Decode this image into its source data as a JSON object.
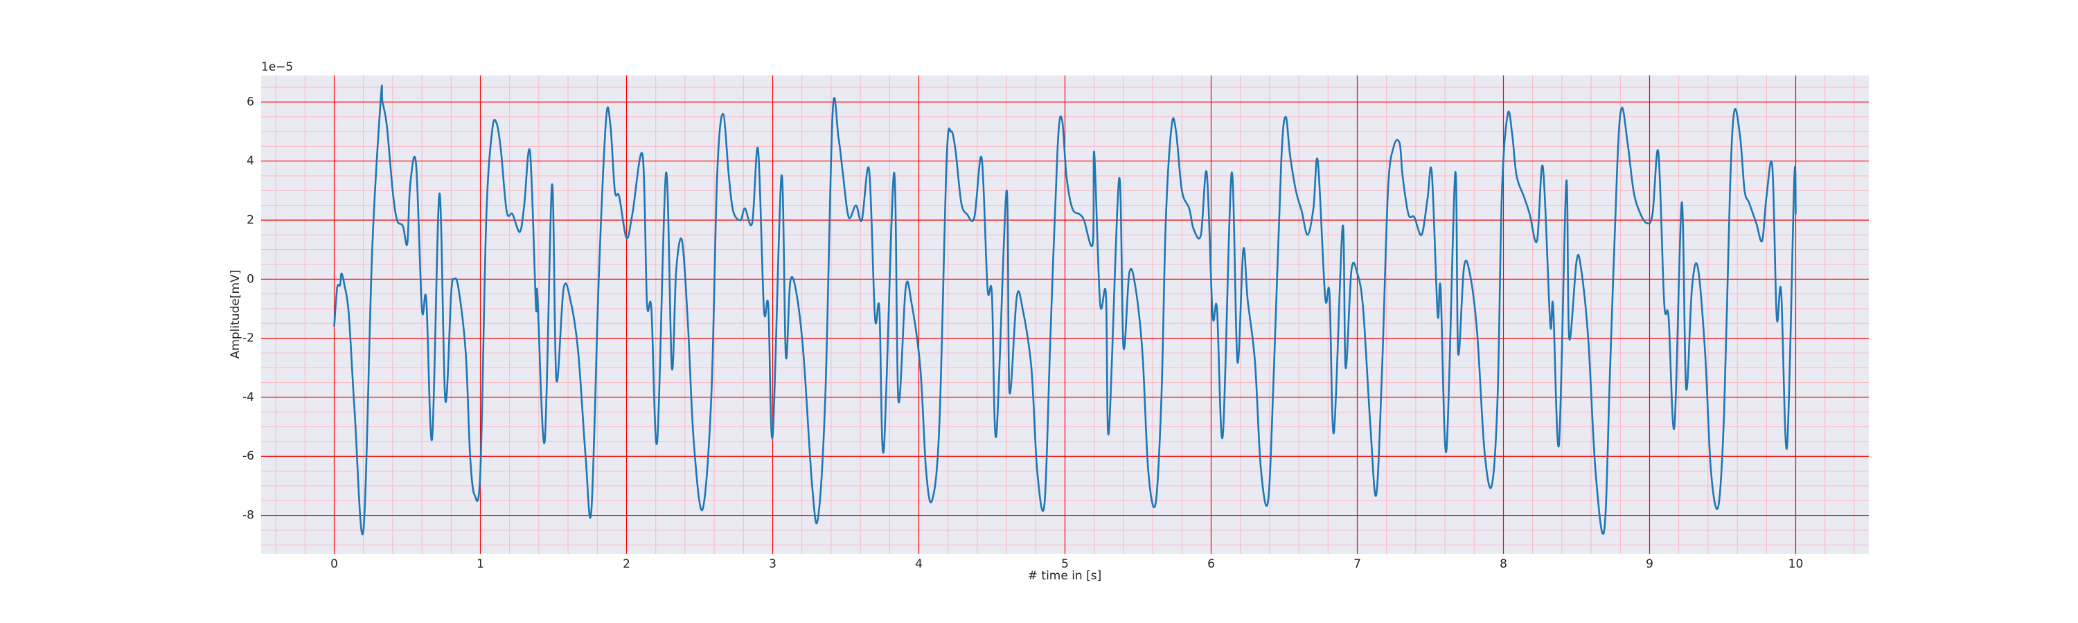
{
  "chart_data": {
    "type": "line",
    "offset_label": "1e−5",
    "xlabel": "# time in [s]",
    "ylabel": "Amplitude[mV]",
    "xlim": [
      -0.5,
      10.5
    ],
    "ylim": [
      -9.3,
      6.9
    ],
    "xticks": [
      0,
      1,
      2,
      3,
      4,
      5,
      6,
      7,
      8,
      9,
      10
    ],
    "yticks": [
      -8,
      -6,
      -4,
      -2,
      0,
      2,
      4,
      6
    ],
    "xminorticks": [
      -0.4,
      -0.2,
      0.2,
      0.4,
      0.6,
      0.8,
      1.2,
      1.4,
      1.6,
      1.8,
      2.2,
      2.4,
      2.6,
      2.8,
      3.2,
      3.4,
      3.6,
      3.8,
      4.2,
      4.4,
      4.6,
      4.8,
      5.2,
      5.4,
      5.6,
      5.8,
      6.2,
      6.4,
      6.6,
      6.8,
      7.2,
      7.4,
      7.6,
      7.8,
      8.2,
      8.4,
      8.6,
      8.8,
      9.2,
      9.4,
      9.6,
      9.8,
      10.2,
      10.4
    ],
    "yminorticks": [
      -9,
      -8.5,
      -7.5,
      -7,
      -6.5,
      -5.5,
      -5,
      -4.5,
      -3.5,
      -3,
      -2.5,
      -1.5,
      -1,
      -0.5,
      0.5,
      1,
      1.5,
      2.5,
      3,
      3.5,
      4.5,
      5,
      5.5,
      6.5
    ],
    "grid": true,
    "grid_color": "#ff0000",
    "minor_grid_color": "#ffb6c1",
    "background": "#eaeaf2",
    "color": "#1f77b4",
    "x": [
      0,
      0.02,
      0.04,
      0.05,
      0.07,
      0.1,
      0.14,
      0.2,
      0.26,
      0.32,
      0.33,
      0.36,
      0.4,
      0.43,
      0.47,
      0.5,
      0.52,
      0.56,
      0.6,
      0.63,
      0.67,
      0.72,
      0.76,
      0.8,
      0.82,
      0.85,
      0.9,
      0.93,
      0.96,
      1.0,
      1.04,
      1.08,
      1.11,
      1.14,
      1.18,
      1.22,
      1.27,
      1.3,
      1.34,
      1.38,
      1.39,
      1.44,
      1.49,
      1.52,
      1.57,
      1.62,
      1.67,
      1.72,
      1.76,
      1.81,
      1.86,
      1.89,
      1.92,
      1.95,
      2.0,
      2.04,
      2.11,
      2.14,
      2.17,
      2.21,
      2.27,
      2.31,
      2.34,
      2.38,
      2.42,
      2.46,
      2.52,
      2.58,
      2.62,
      2.66,
      2.7,
      2.73,
      2.78,
      2.81,
      2.86,
      2.9,
      2.94,
      2.97,
      3.0,
      3.06,
      3.09,
      3.12,
      3.16,
      3.21,
      3.27,
      3.31,
      3.36,
      3.41,
      3.45,
      3.48,
      3.52,
      3.57,
      3.61,
      3.66,
      3.7,
      3.73,
      3.76,
      3.83,
      3.86,
      3.91,
      3.95,
      4.01,
      4.05,
      4.09,
      4.14,
      4.19,
      4.22,
      4.25,
      4.29,
      4.33,
      4.38,
      4.43,
      4.47,
      4.5,
      4.53,
      4.6,
      4.62,
      4.67,
      4.71,
      4.77,
      4.81,
      4.86,
      4.9,
      4.95,
      4.98,
      5.01,
      5.05,
      5.1,
      5.13,
      5.19,
      5.2,
      5.24,
      5.28,
      5.3,
      5.37,
      5.4,
      5.44,
      5.48,
      5.53,
      5.57,
      5.62,
      5.66,
      5.69,
      5.73,
      5.76,
      5.8,
      5.85,
      5.88,
      5.93,
      5.97,
      6.01,
      6.04,
      6.08,
      6.14,
      6.18,
      6.22,
      6.25,
      6.3,
      6.34,
      6.39,
      6.43,
      6.48,
      6.51,
      6.54,
      6.58,
      6.62,
      6.66,
      6.7,
      6.73,
      6.78,
      6.81,
      6.84,
      6.9,
      6.92,
      6.96,
      7.0,
      7.04,
      7.09,
      7.13,
      7.17,
      7.21,
      7.25,
      7.29,
      7.31,
      7.35,
      7.39,
      7.44,
      7.48,
      7.51,
      7.55,
      7.57,
      7.61,
      7.67,
      7.69,
      7.73,
      7.77,
      7.82,
      7.87,
      7.92,
      7.96,
      7.99,
      8.03,
      8.06,
      8.09,
      8.14,
      8.18,
      8.23,
      8.27,
      8.32,
      8.34,
      8.38,
      8.43,
      8.45,
      8.5,
      8.53,
      8.58,
      8.63,
      8.69,
      8.73,
      8.78,
      8.81,
      8.85,
      8.89,
      8.93,
      8.98,
      9.02,
      9.06,
      9.1,
      9.13,
      9.17,
      9.22,
      9.25,
      9.29,
      9.33,
      9.38,
      9.42,
      9.47,
      9.51,
      9.55,
      9.58,
      9.62,
      9.65,
      9.68,
      9.73,
      9.77,
      9.8,
      9.84,
      9.87,
      9.9,
      9.94,
      9.99,
      10.0
    ],
    "values": [
      -1.6,
      -0.3,
      -0.2,
      0.2,
      -0.2,
      -1.2,
      -4.5,
      -8.5,
      1,
      6.2,
      6,
      5.2,
      3,
      2,
      1.8,
      1.2,
      3.2,
      3.9,
      -1,
      -0.7,
      -5.4,
      2.9,
      -4.1,
      -0.5,
      0,
      -0.3,
      -2.5,
      -6,
      -7.3,
      -6.5,
      2,
      5,
      5.3,
      4.4,
      2.3,
      2.2,
      1.6,
      2.5,
      4.3,
      -0.9,
      -0.5,
      -5.5,
      3.2,
      -3.4,
      -0.3,
      -0.8,
      -2.5,
      -6,
      -7.8,
      0,
      5.4,
      5.2,
      3,
      2.8,
      1.4,
      2.2,
      4.2,
      -0.8,
      -1,
      -5.5,
      3.6,
      -3,
      0.3,
      1.3,
      -1.5,
      -5.5,
      -7.8,
      -4,
      3.5,
      5.6,
      3.5,
      2.3,
      2,
      2.4,
      1.9,
      4.4,
      -1,
      -0.9,
      -5.3,
      3.5,
      -2.6,
      -0.1,
      -0.4,
      -2.5,
      -7,
      -8.1,
      -4,
      5.6,
      4.8,
      3.6,
      2.1,
      2.5,
      2,
      3.7,
      -1.3,
      -1,
      -5.8,
      3.6,
      -4.1,
      -0.3,
      -0.8,
      -3,
      -6.5,
      -7.5,
      -5,
      4,
      5,
      4.4,
      2.6,
      2.2,
      2.1,
      4.1,
      -0.3,
      -0.5,
      -5.3,
      3,
      -3.8,
      -0.6,
      -1,
      -3,
      -6.5,
      -7.6,
      -2,
      4.5,
      5.4,
      3.5,
      2.4,
      2.2,
      2,
      1.2,
      4.3,
      -0.8,
      -0.5,
      -5.2,
      3.4,
      -2.3,
      0.2,
      -0.2,
      -2.5,
      -6.5,
      -7.6,
      -4,
      2,
      5.2,
      5,
      3,
      2.4,
      1.7,
      1.5,
      3.6,
      -1.2,
      -1,
      -5.3,
      3.6,
      -2.8,
      1,
      -0.7,
      -2.8,
      -6.4,
      -7.5,
      -3,
      4,
      5.5,
      4.2,
      3,
      2.3,
      1.5,
      2.4,
      4,
      -0.6,
      -0.5,
      -5.2,
      1.8,
      -3,
      0.3,
      0.2,
      -1,
      -5,
      -7.3,
      -3,
      3,
      4.5,
      4.6,
      3.5,
      2.2,
      2.1,
      1.5,
      2.7,
      3.6,
      -1.2,
      -0.3,
      -5.8,
      3.6,
      -2.5,
      0.4,
      0.2,
      -1.8,
      -5.8,
      -7,
      -4,
      3,
      5.6,
      4.9,
      3.5,
      2.8,
      2.2,
      1.3,
      3.8,
      -1.5,
      -0.9,
      -5.6,
      3.3,
      -2,
      0.6,
      0.4,
      -2,
      -6.5,
      -8.5,
      -3,
      4,
      5.8,
      4.6,
      3,
      2.3,
      1.9,
      2.2,
      4.3,
      -0.8,
      -1.3,
      -5,
      2.6,
      -3.7,
      -0.3,
      0.4,
      -2.5,
      -6.5,
      -7.7,
      -4.5,
      3,
      5.7,
      4.8,
      3,
      2.6,
      1.9,
      1.3,
      2.8,
      3.8,
      -1.3,
      -0.4,
      -5.7,
      3.4,
      2.2
    ]
  }
}
